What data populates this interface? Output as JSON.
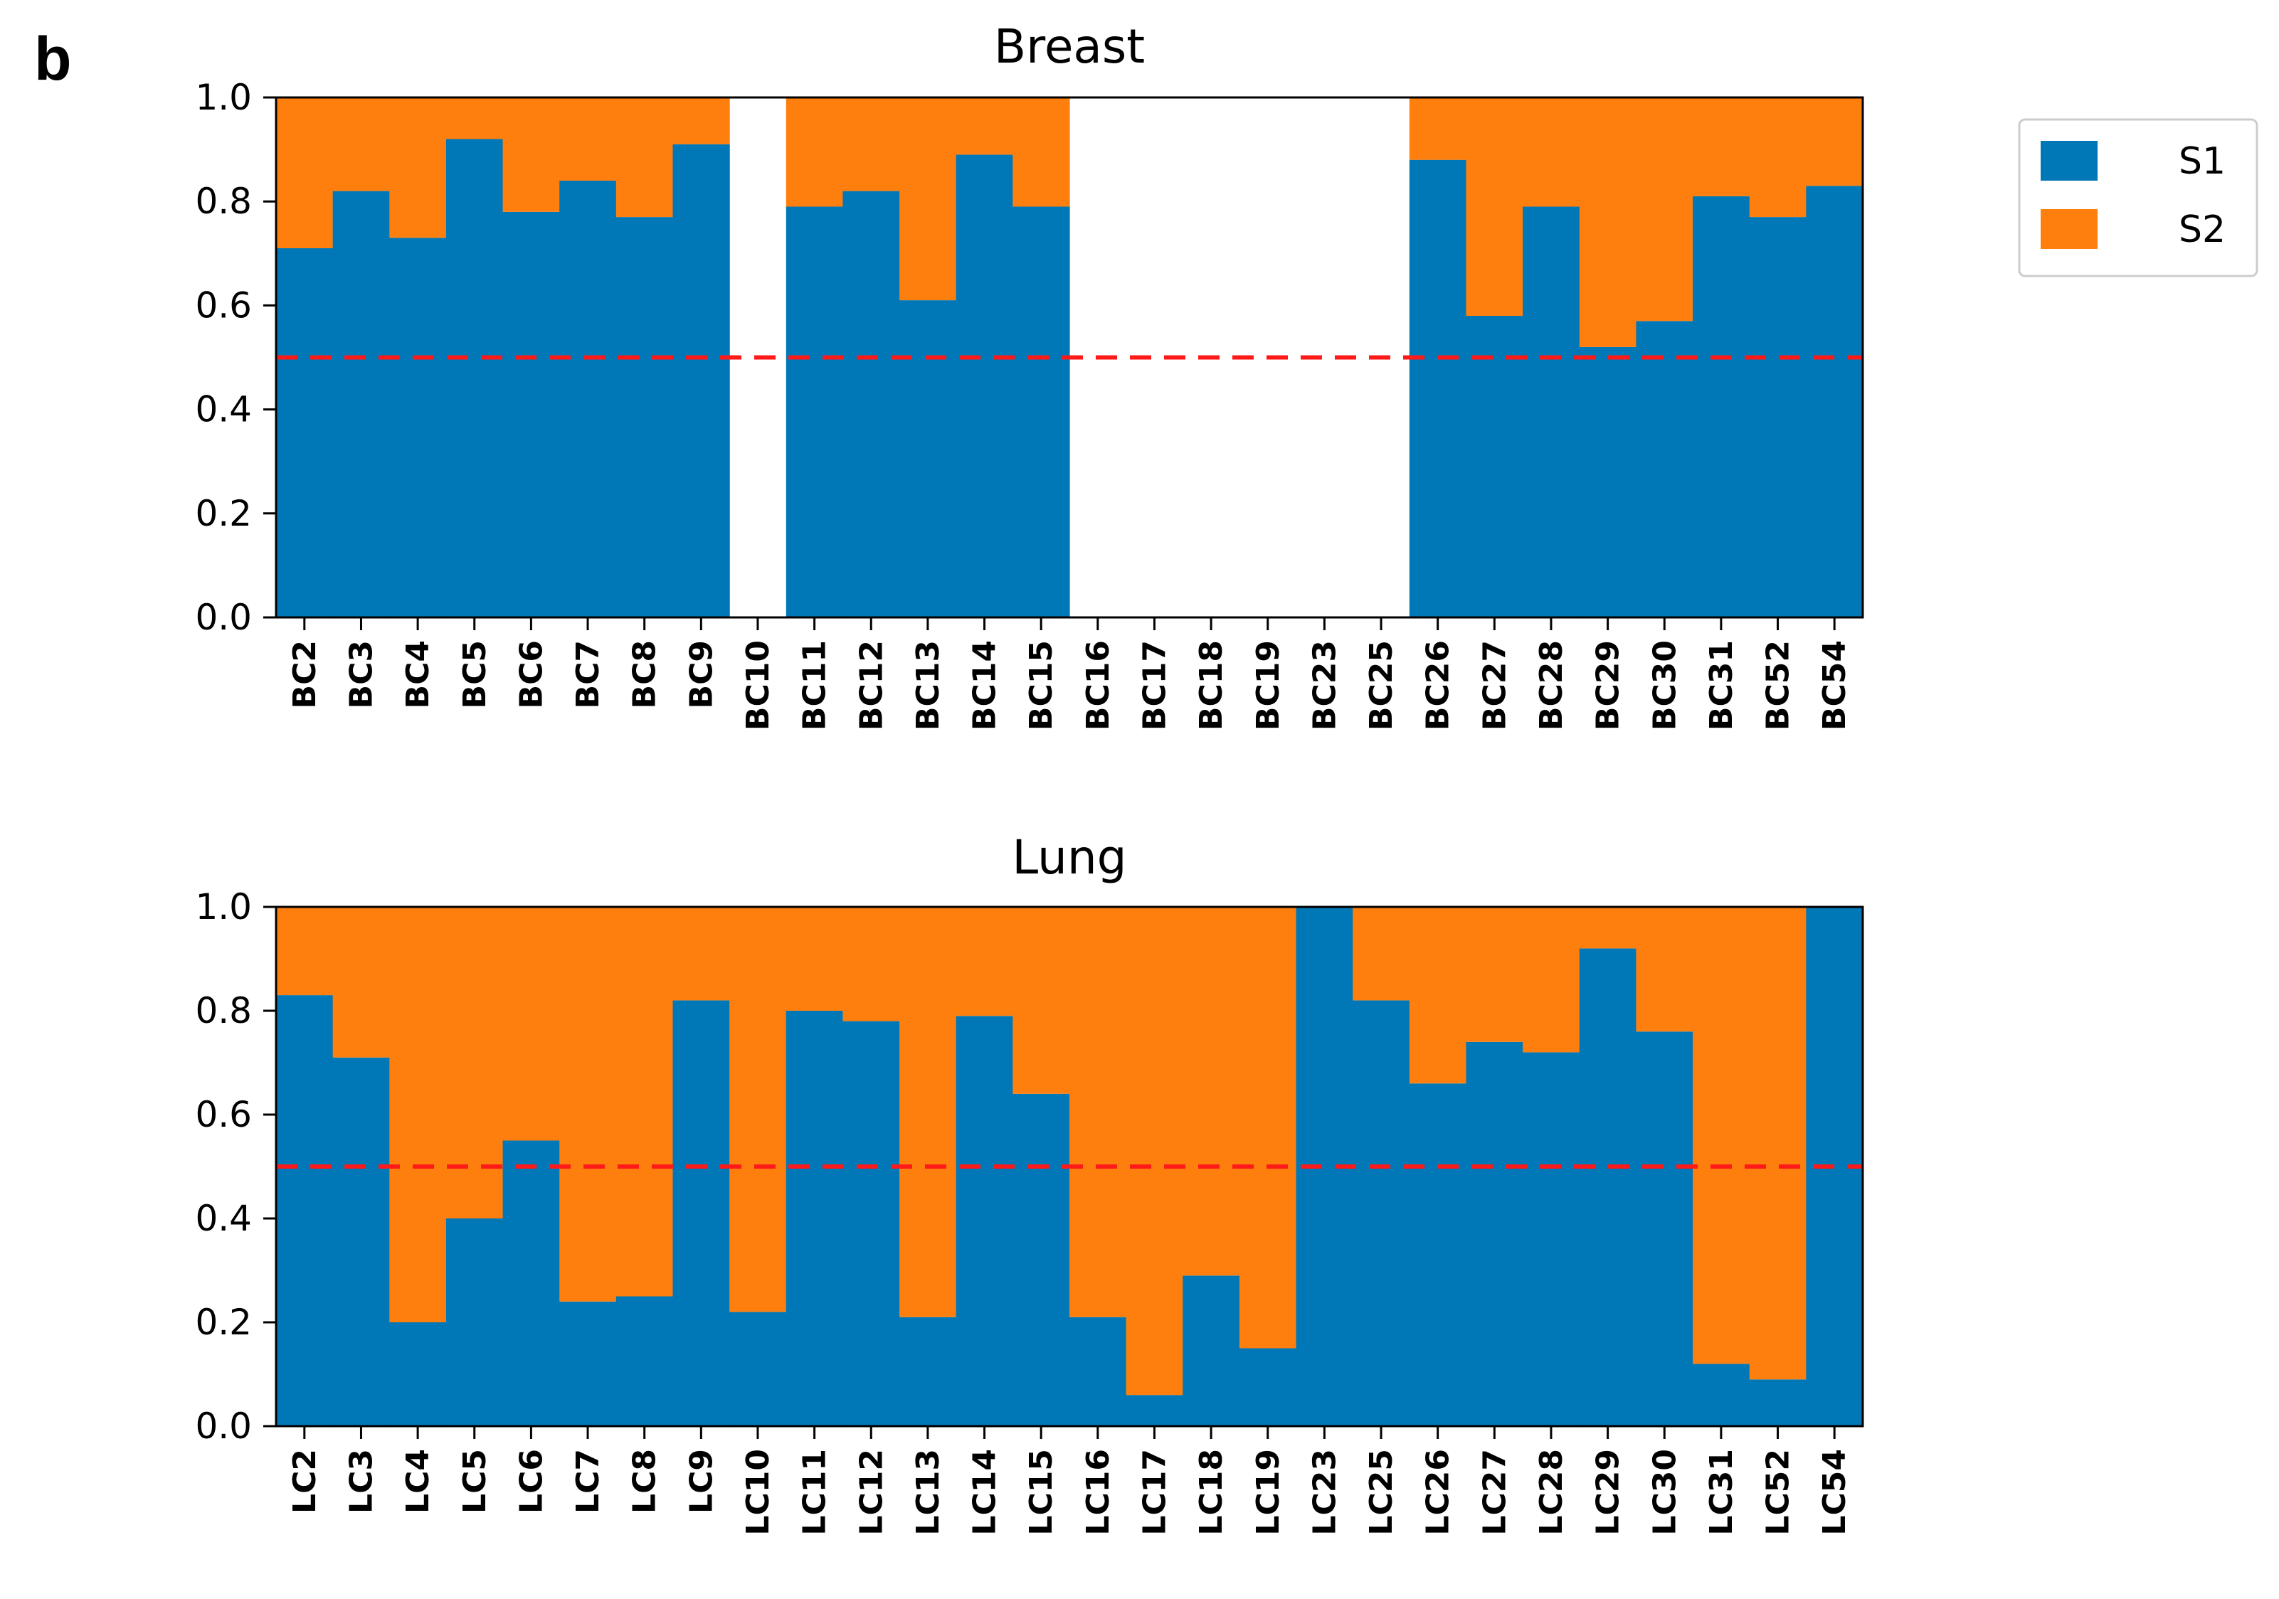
{
  "panel_label": "b",
  "colors": {
    "s1": "#0077b6",
    "s2": "#ff7f0e",
    "reference_line": "#ff1a1a"
  },
  "legend": {
    "items": [
      {
        "label": "S1",
        "color": "#0077b6"
      },
      {
        "label": "S2",
        "color": "#ff7f0e"
      }
    ]
  },
  "chart_data": [
    {
      "type": "bar",
      "stacked": true,
      "title": "Breast",
      "categories": [
        "BC2",
        "BC3",
        "BC4",
        "BC5",
        "BC6",
        "BC7",
        "BC8",
        "BC9",
        "BC10",
        "BC11",
        "BC12",
        "BC13",
        "BC14",
        "BC15",
        "BC16",
        "BC17",
        "BC18",
        "BC19",
        "BC23",
        "BC25",
        "BC26",
        "BC27",
        "BC28",
        "BC29",
        "BC30",
        "BC31",
        "BC52",
        "BC54"
      ],
      "series": [
        {
          "name": "S1",
          "values": [
            0.71,
            0.82,
            0.73,
            0.92,
            0.78,
            0.84,
            0.77,
            0.91,
            null,
            0.79,
            0.82,
            0.61,
            0.89,
            0.79,
            null,
            null,
            null,
            null,
            null,
            null,
            0.88,
            0.58,
            0.79,
            0.52,
            0.57,
            0.81,
            0.77,
            0.83
          ]
        },
        {
          "name": "S2",
          "values": [
            0.29,
            0.18,
            0.27,
            0.08,
            0.22,
            0.16,
            0.23,
            0.09,
            null,
            0.21,
            0.18,
            0.39,
            0.11,
            0.21,
            null,
            null,
            null,
            null,
            null,
            null,
            0.12,
            0.42,
            0.21,
            0.48,
            0.43,
            0.19,
            0.23,
            0.17
          ]
        }
      ],
      "reference_line": 0.5,
      "ylim": [
        0,
        1.0
      ],
      "yticks": [
        "0.0",
        "0.2",
        "0.4",
        "0.6",
        "0.8",
        "1.0"
      ],
      "xlabel": "",
      "ylabel": ""
    },
    {
      "type": "bar",
      "stacked": true,
      "title": "Lung",
      "categories": [
        "LC2",
        "LC3",
        "LC4",
        "LC5",
        "LC6",
        "LC7",
        "LC8",
        "LC9",
        "LC10",
        "LC11",
        "LC12",
        "LC13",
        "LC14",
        "LC15",
        "LC16",
        "LC17",
        "LC18",
        "LC19",
        "LC23",
        "LC25",
        "LC26",
        "LC27",
        "LC28",
        "LC29",
        "LC30",
        "LC31",
        "LC52",
        "LC54"
      ],
      "series": [
        {
          "name": "S1",
          "values": [
            0.83,
            0.71,
            0.2,
            0.4,
            0.55,
            0.24,
            0.25,
            0.82,
            0.22,
            0.8,
            0.78,
            0.21,
            0.79,
            0.64,
            0.21,
            0.06,
            0.29,
            0.15,
            1.0,
            0.82,
            0.66,
            0.74,
            0.72,
            0.92,
            0.76,
            0.12,
            0.09,
            1.0
          ]
        },
        {
          "name": "S2",
          "values": [
            0.17,
            0.29,
            0.8,
            0.6,
            0.45,
            0.76,
            0.75,
            0.18,
            0.78,
            0.2,
            0.22,
            0.79,
            0.21,
            0.36,
            0.79,
            0.94,
            0.71,
            0.85,
            0.0,
            0.18,
            0.34,
            0.26,
            0.28,
            0.08,
            0.24,
            0.88,
            0.91,
            0.0
          ]
        }
      ],
      "reference_line": 0.5,
      "ylim": [
        0,
        1.0
      ],
      "yticks": [
        "0.0",
        "0.2",
        "0.4",
        "0.6",
        "0.8",
        "1.0"
      ],
      "xlabel": "",
      "ylabel": ""
    }
  ]
}
